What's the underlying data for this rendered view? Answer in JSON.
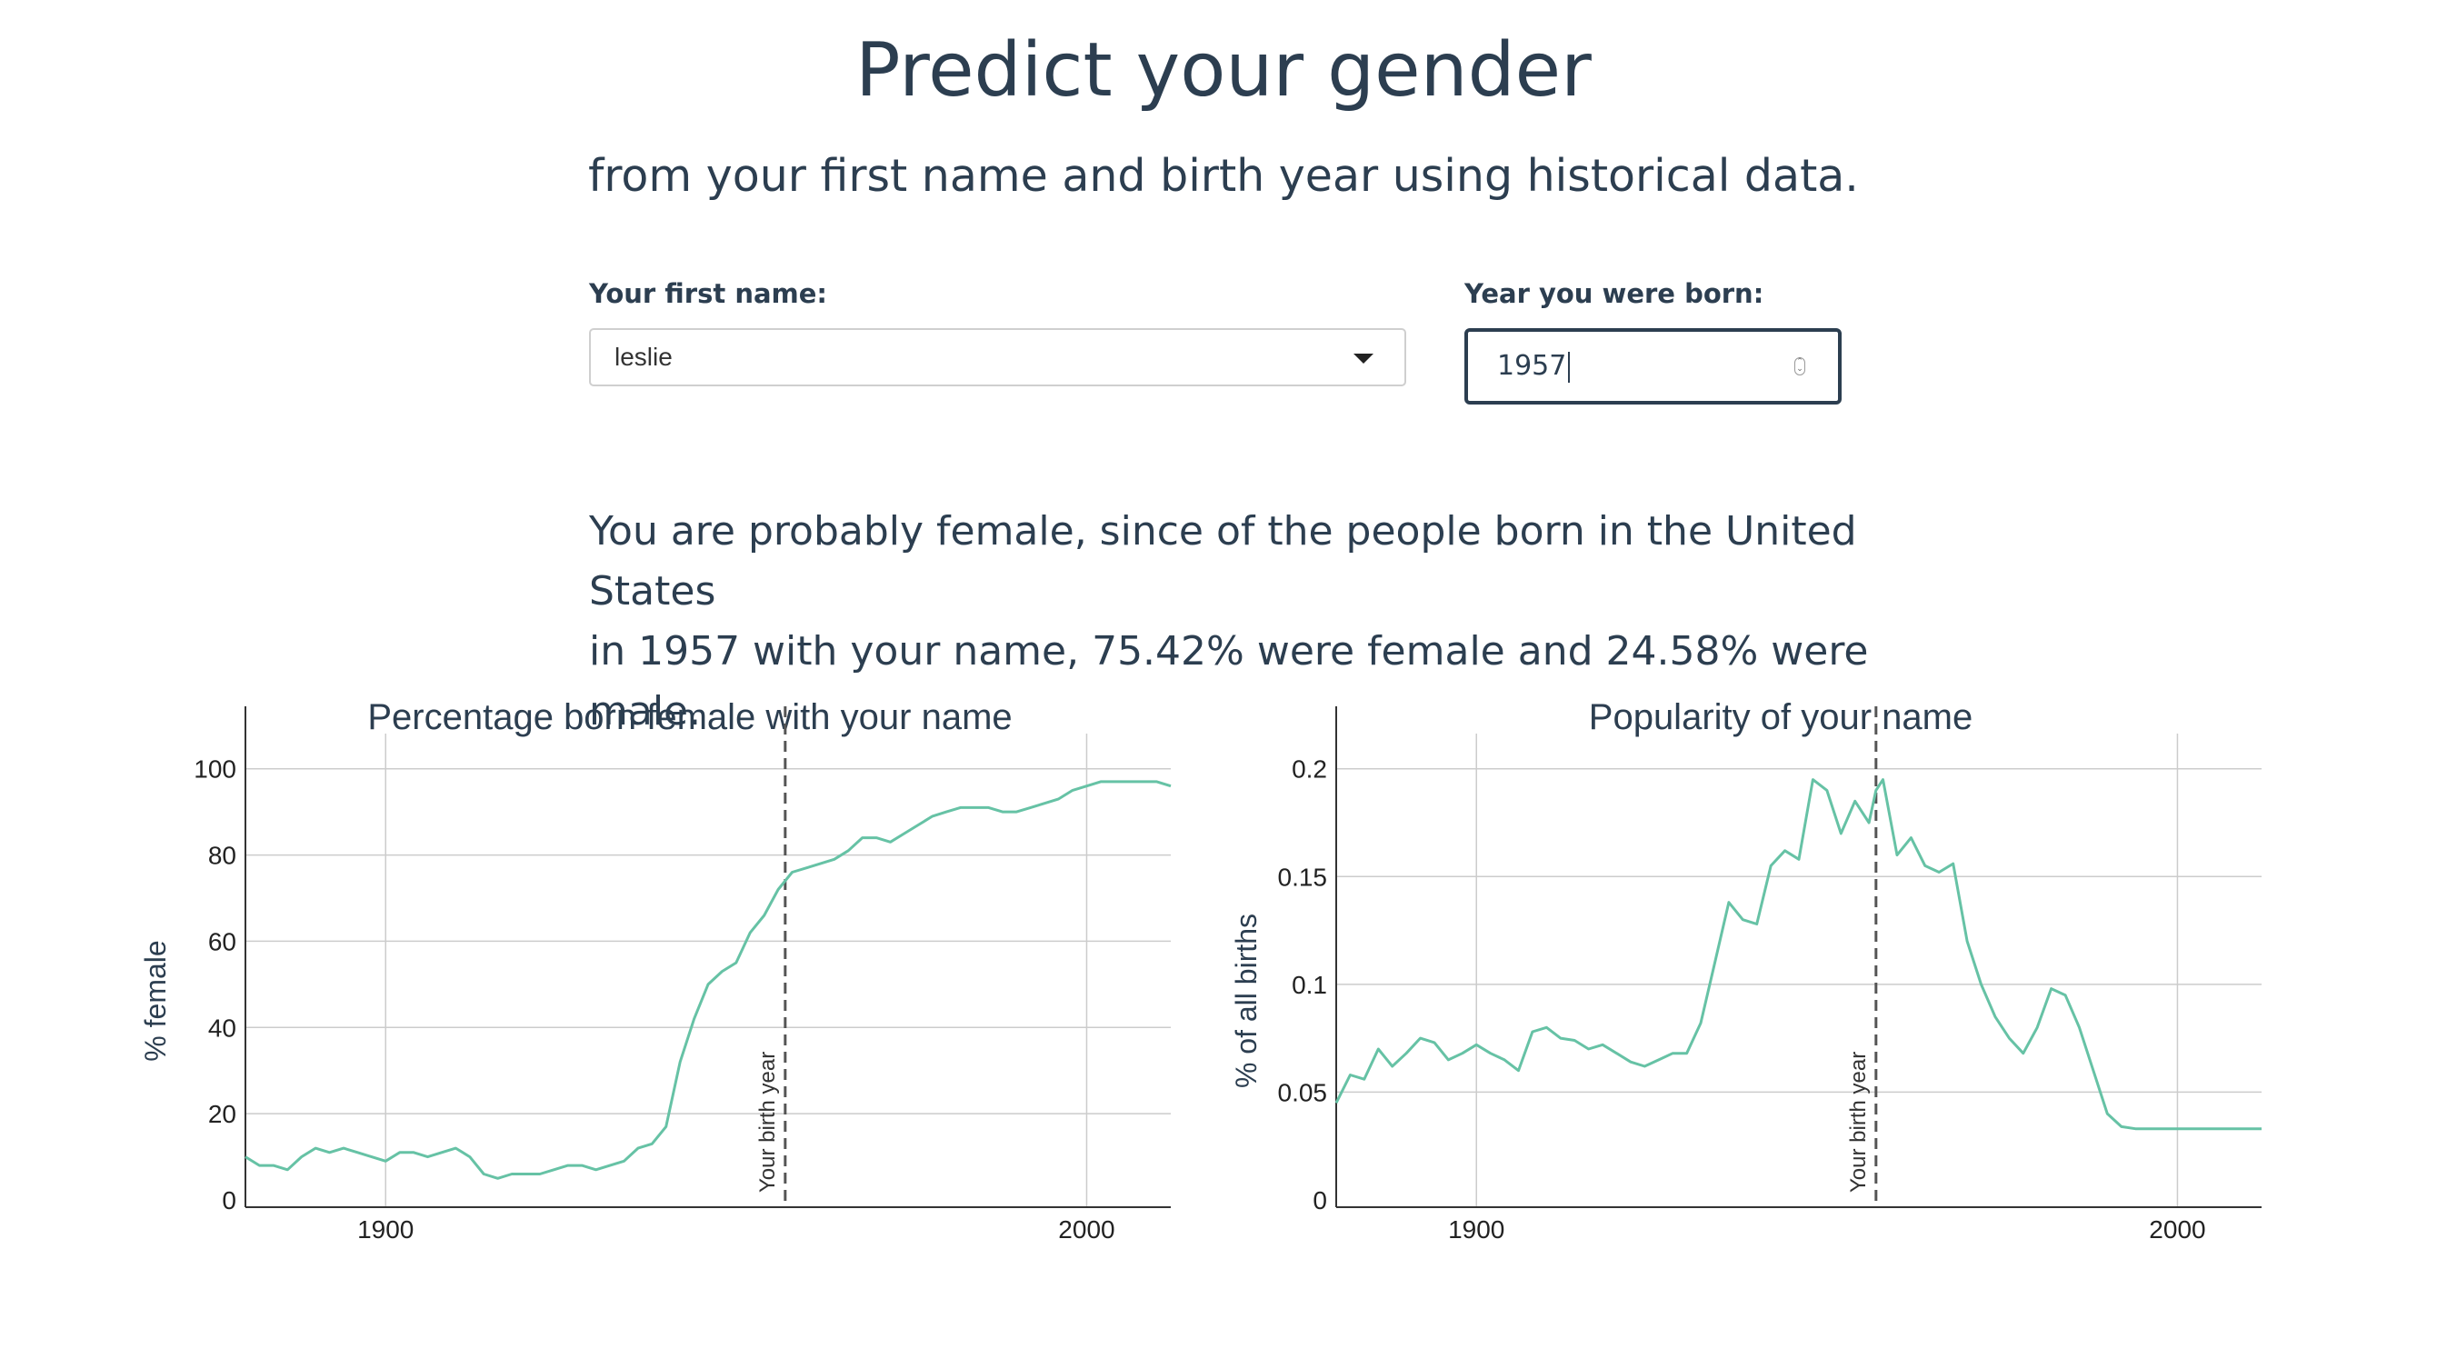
{
  "header": {
    "title": "Predict your gender",
    "subtitle": "from your first name and birth year using historical data."
  },
  "form": {
    "name_label": "Your first name:",
    "name_value": "leslie",
    "year_label": "Year you were born:",
    "year_value": "1957"
  },
  "result": {
    "line1": "You are probably female, since of the people born in the United States",
    "line2": "in 1957 with your name, 75.42% were female and 24.58% were male."
  },
  "colors": {
    "line": "#66c2a5",
    "text": "#2c3e50",
    "grid": "#cccccc",
    "marker": "#555555"
  },
  "chart_data": [
    {
      "type": "line",
      "title": "Percentage born female with your name",
      "ylabel": "% female",
      "xlabel": "",
      "xlim": [
        1880,
        2012
      ],
      "ylim": [
        0,
        105
      ],
      "xticks": [
        1900,
        2000
      ],
      "yticks": [
        0,
        20,
        40,
        60,
        80,
        100
      ],
      "grid": true,
      "marker": {
        "x": 1957,
        "label": "Your birth year"
      },
      "x": [
        1880,
        1882,
        1884,
        1886,
        1888,
        1890,
        1892,
        1894,
        1896,
        1898,
        1900,
        1902,
        1904,
        1906,
        1908,
        1910,
        1912,
        1914,
        1916,
        1918,
        1920,
        1922,
        1924,
        1926,
        1928,
        1930,
        1932,
        1934,
        1936,
        1938,
        1940,
        1942,
        1944,
        1946,
        1948,
        1950,
        1952,
        1954,
        1956,
        1958,
        1960,
        1962,
        1964,
        1966,
        1968,
        1970,
        1972,
        1974,
        1976,
        1978,
        1980,
        1982,
        1984,
        1986,
        1988,
        1990,
        1992,
        1994,
        1996,
        1998,
        2000,
        2002,
        2004,
        2006,
        2008,
        2010,
        2012
      ],
      "y": [
        10,
        8,
        8,
        7,
        10,
        12,
        11,
        12,
        11,
        10,
        9,
        11,
        11,
        10,
        11,
        12,
        10,
        6,
        5,
        6,
        6,
        6,
        7,
        8,
        8,
        7,
        8,
        9,
        12,
        13,
        17,
        32,
        42,
        50,
        53,
        55,
        62,
        66,
        72,
        76,
        77,
        78,
        79,
        81,
        84,
        84,
        83,
        85,
        87,
        89,
        90,
        91,
        91,
        91,
        90,
        90,
        91,
        92,
        93,
        95,
        96,
        97,
        97,
        97,
        97,
        97,
        96
      ],
      "series_name": ""
    },
    {
      "type": "line",
      "title": "Popularity of your name",
      "ylabel": "% of all births",
      "xlabel": "",
      "xlim": [
        1880,
        2012
      ],
      "ylim": [
        0,
        0.21
      ],
      "xticks": [
        1900,
        2000
      ],
      "yticks": [
        0,
        0.05,
        0.1,
        0.15,
        0.2
      ],
      "ytick_labels": [
        "0",
        "0.05",
        "0.1",
        "0.15",
        "0.2"
      ],
      "grid": true,
      "marker": {
        "x": 1957,
        "label": "Your birth year"
      },
      "x": [
        1880,
        1882,
        1884,
        1886,
        1888,
        1890,
        1892,
        1894,
        1896,
        1898,
        1900,
        1902,
        1904,
        1906,
        1908,
        1910,
        1912,
        1914,
        1916,
        1918,
        1920,
        1922,
        1924,
        1926,
        1928,
        1930,
        1932,
        1934,
        1936,
        1938,
        1940,
        1942,
        1944,
        1946,
        1948,
        1950,
        1952,
        1954,
        1956,
        1957,
        1958,
        1960,
        1962,
        1964,
        1966,
        1968,
        1970,
        1972,
        1974,
        1976,
        1978,
        1980,
        1982,
        1984,
        1986,
        1988,
        1990,
        1992,
        1994,
        1996,
        1998,
        2000,
        2002,
        2004,
        2006,
        2008,
        2010,
        2012
      ],
      "y": [
        0.045,
        0.058,
        0.056,
        0.07,
        0.062,
        0.068,
        0.075,
        0.073,
        0.065,
        0.068,
        0.072,
        0.068,
        0.065,
        0.06,
        0.078,
        0.08,
        0.075,
        0.074,
        0.07,
        0.072,
        0.068,
        0.064,
        0.062,
        0.065,
        0.068,
        0.068,
        0.082,
        0.11,
        0.138,
        0.13,
        0.128,
        0.155,
        0.162,
        0.158,
        0.195,
        0.19,
        0.17,
        0.185,
        0.175,
        0.19,
        0.195,
        0.16,
        0.168,
        0.155,
        0.152,
        0.156,
        0.12,
        0.1,
        0.085,
        0.075,
        0.068,
        0.08,
        0.098,
        0.095,
        0.08,
        0.06,
        0.04,
        0.034,
        0.033,
        0.033,
        0.033,
        0.033,
        0.033,
        0.033,
        0.033,
        0.033,
        0.033,
        0.033
      ],
      "series_name": ""
    }
  ]
}
